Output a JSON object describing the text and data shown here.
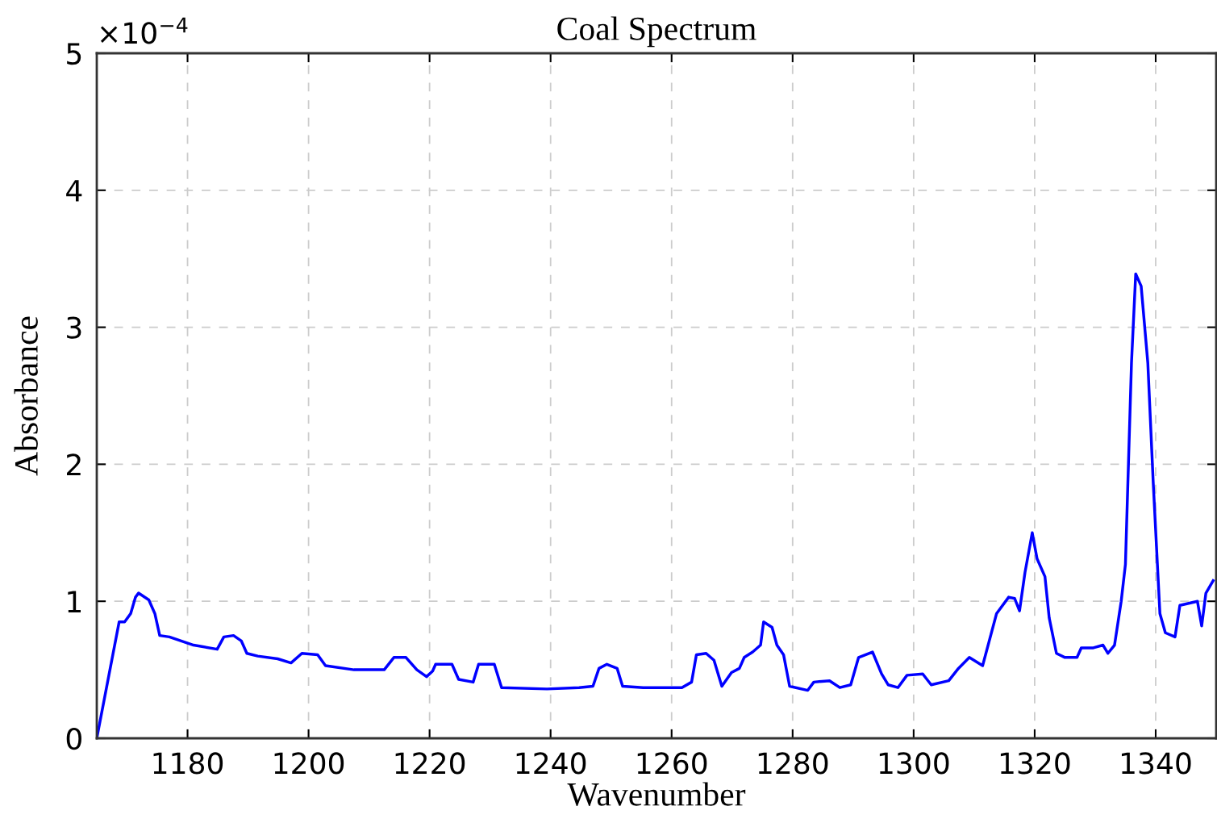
{
  "chart_data": {
    "type": "line",
    "title": "Coal Spectrum",
    "xlabel": "Wavenumber",
    "ylabel": "Absorbance",
    "annotations": [
      "×10$^{−4}$"
    ],
    "xlim": [
      1165,
      1350
    ],
    "xticks": [
      1180,
      1200,
      1220,
      1240,
      1260,
      1280,
      1300,
      1320,
      1340
    ],
    "ylim": [
      0,
      5
    ],
    "yticks": [
      0,
      1,
      2,
      3,
      4,
      5
    ],
    "grid": true,
    "line_style": "solid",
    "marker": "none",
    "series": [
      {
        "color": "#0000ff",
        "x": [
          1165,
          1168.7,
          1169.6,
          1170.6,
          1171.4,
          1171.9,
          1173.6,
          1174.6,
          1175.4,
          1177,
          1181,
          1184.9,
          1186,
          1187.6,
          1188.9,
          1189.8,
          1191.6,
          1194.9,
          1197.1,
          1198.9,
          1201.5,
          1202.8,
          1207.5,
          1212.5,
          1214.1,
          1216.1,
          1217.9,
          1219.5,
          1220.5,
          1221,
          1223.7,
          1224.8,
          1227.2,
          1228.1,
          1230.7,
          1231.9,
          1239.4,
          1244.7,
          1247,
          1248,
          1249.3,
          1251,
          1251.9,
          1255.3,
          1261.7,
          1263.3,
          1264.1,
          1265.7,
          1267,
          1268.3,
          1269.9,
          1271.2,
          1272,
          1273.4,
          1274.7,
          1275.2,
          1276.6,
          1277.4,
          1278.5,
          1279.5,
          1282.5,
          1283.5,
          1286.1,
          1287.8,
          1289.6,
          1290.9,
          1293.2,
          1294.7,
          1295.8,
          1297.4,
          1298.9,
          1301.5,
          1302.9,
          1305.8,
          1307.4,
          1309.2,
          1311.4,
          1313.7,
          1315.7,
          1316.7,
          1317.5,
          1318.4,
          1319.6,
          1320.4,
          1321.7,
          1322.4,
          1323.6,
          1325,
          1327,
          1327.7,
          1329.7,
          1331.3,
          1332.1,
          1333.2,
          1334.3,
          1335,
          1336,
          1336.7,
          1337.6,
          1338.7,
          1339.6,
          1340.7,
          1341.6,
          1343.2,
          1344,
          1346.9,
          1347.6,
          1348.3,
          1349.5
        ],
        "values": [
          0,
          0.85,
          0.85,
          0.91,
          1.03,
          1.06,
          1.01,
          0.91,
          0.75,
          0.74,
          0.68,
          0.65,
          0.74,
          0.75,
          0.71,
          0.62,
          0.6,
          0.58,
          0.55,
          0.62,
          0.61,
          0.53,
          0.5,
          0.5,
          0.59,
          0.59,
          0.5,
          0.45,
          0.49,
          0.54,
          0.54,
          0.43,
          0.41,
          0.54,
          0.54,
          0.37,
          0.36,
          0.37,
          0.38,
          0.51,
          0.54,
          0.51,
          0.38,
          0.37,
          0.37,
          0.41,
          0.61,
          0.62,
          0.57,
          0.38,
          0.48,
          0.51,
          0.59,
          0.63,
          0.68,
          0.85,
          0.81,
          0.68,
          0.61,
          0.38,
          0.35,
          0.41,
          0.42,
          0.37,
          0.39,
          0.59,
          0.63,
          0.47,
          0.39,
          0.37,
          0.46,
          0.47,
          0.39,
          0.42,
          0.51,
          0.59,
          0.53,
          0.91,
          1.03,
          1.02,
          0.93,
          1.21,
          1.5,
          1.31,
          1.18,
          0.88,
          0.62,
          0.59,
          0.59,
          0.66,
          0.66,
          0.68,
          0.62,
          0.68,
          1,
          1.27,
          2.74,
          3.39,
          3.3,
          2.74,
          1.86,
          0.91,
          0.77,
          0.74,
          0.97,
          1,
          0.82,
          1.06,
          1.15
        ]
      }
    ]
  }
}
